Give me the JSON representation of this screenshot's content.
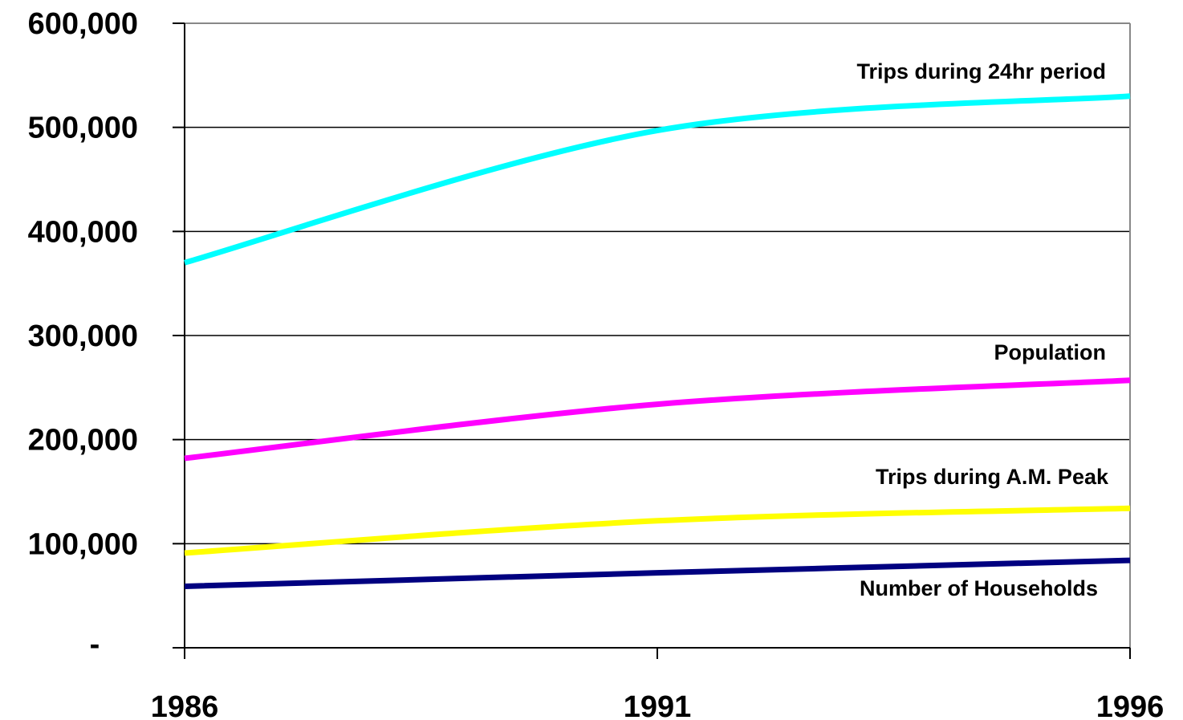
{
  "chart_data": {
    "type": "line",
    "title": "",
    "xlabel": "",
    "ylabel": "",
    "x": [
      1986,
      1991,
      1996
    ],
    "x_tick_labels": [
      "1986",
      "1991",
      "1996"
    ],
    "ylim": [
      0,
      600000
    ],
    "y_ticks": [
      0,
      100000,
      200000,
      300000,
      400000,
      500000,
      600000
    ],
    "y_tick_labels": [
      "-",
      "100,000",
      "200,000",
      "300,000",
      "400,000",
      "500,000",
      "600,000"
    ],
    "grid": "horizontal",
    "series": [
      {
        "name": "Trips during 24hr period",
        "color": "#00FFFF",
        "values": [
          370000,
          497000,
          530000
        ]
      },
      {
        "name": "Population",
        "color": "#FF00FF",
        "values": [
          182000,
          234000,
          257000
        ]
      },
      {
        "name": "Trips during A.M. Peak",
        "color": "#FFFF00",
        "values": [
          91000,
          122000,
          134000
        ]
      },
      {
        "name": "Number of Households",
        "color": "#000080",
        "values": [
          59000,
          72000,
          84000
        ]
      }
    ]
  }
}
